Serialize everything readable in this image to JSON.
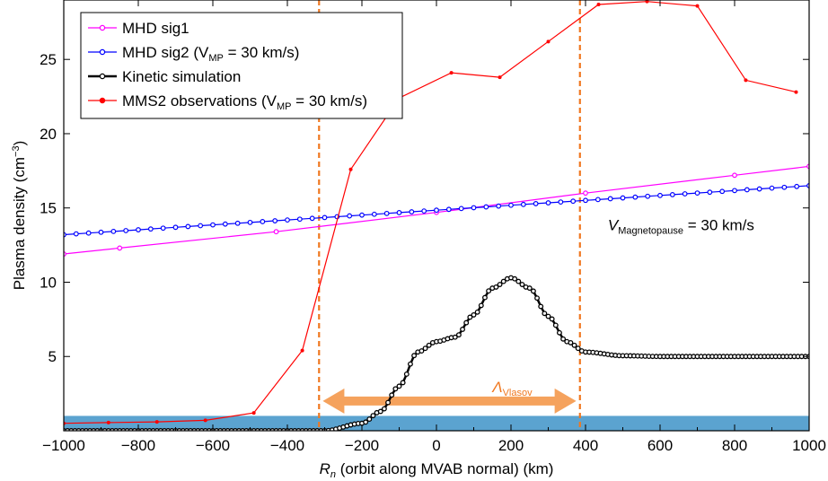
{
  "chart_data": {
    "type": "line",
    "xlabel": {
      "main": "R",
      "sub": "n",
      "rest": " (orbit along MVAB normal) (km)"
    },
    "ylabel": {
      "main": "Plasma density (cm",
      "sup": "−3",
      "end": ")"
    },
    "xlim": [
      -1000,
      1000
    ],
    "ylim": [
      0,
      29
    ],
    "xticks": [
      -1000,
      -800,
      -600,
      -400,
      -200,
      0,
      200,
      400,
      600,
      800,
      1000
    ],
    "xtick_labels": [
      "−1000",
      "−800",
      "−600",
      "−400",
      "−200",
      "0",
      "200",
      "400",
      "600",
      "800",
      "1000"
    ],
    "yticks": [
      5,
      10,
      15,
      20,
      25
    ],
    "ytick_labels": [
      "5",
      "10",
      "15",
      "20",
      "25"
    ],
    "grid": false,
    "legend_position": "top-left",
    "colors": {
      "mhd_sig1": "#ff00ff",
      "mhd_sig2": "#0000ff",
      "kinetic": "#000000",
      "mms2": "#ff0000",
      "vlines": "#f07820",
      "arrow": "#f5a25d",
      "band": "#5ba3d0"
    },
    "series": [
      {
        "key": "mhd_sig1",
        "label": {
          "pre": "MHD sig1",
          "sub": "",
          "post": ""
        },
        "x": [
          -1000,
          -850,
          -430,
          0,
          400,
          800,
          1000
        ],
        "y": [
          11.9,
          12.3,
          13.4,
          14.7,
          16.0,
          17.2,
          17.8
        ],
        "marker_every": 1,
        "line_width": 1.2
      },
      {
        "key": "mhd_sig2",
        "label": {
          "pre": "MHD sig2 (V",
          "sub": "MP",
          "post": " = 30 km/s)"
        },
        "x0": -1000,
        "x1": 1000,
        "n": 61,
        "y0": 13.2,
        "y1": 16.5,
        "marker_every": 1,
        "line_width": 1.2
      },
      {
        "key": "kinetic",
        "label": {
          "pre": "Kinetic simulation",
          "sub": "",
          "post": ""
        },
        "x0": -1000,
        "x1": 1000,
        "n": 201,
        "profile": [
          [
            -1000,
            0
          ],
          [
            -300,
            0
          ],
          [
            -200,
            0.5
          ],
          [
            -150,
            1.3
          ],
          [
            -100,
            3
          ],
          [
            -50,
            5.3
          ],
          [
            0,
            6
          ],
          [
            50,
            6.3
          ],
          [
            100,
            7.8
          ],
          [
            150,
            9.6
          ],
          [
            200,
            10.3
          ],
          [
            250,
            9.6
          ],
          [
            300,
            7.7
          ],
          [
            350,
            6.0
          ],
          [
            400,
            5.3
          ],
          [
            500,
            5.05
          ],
          [
            600,
            5
          ],
          [
            1000,
            5
          ]
        ],
        "marker_every": 1,
        "line_width": 2.5
      },
      {
        "key": "mms2",
        "label": {
          "pre": "MMS2 observations (V",
          "sub": "MP",
          "post": " = 30 km/s)"
        },
        "x": [
          -1000,
          -880,
          -750,
          -620,
          -490,
          -360,
          -230,
          -100,
          40,
          170,
          300,
          435,
          565,
          700,
          830,
          965
        ],
        "y": [
          0.5,
          0.55,
          0.6,
          0.7,
          1.2,
          5.4,
          17.6,
          22.4,
          24.1,
          23.8,
          26.2,
          28.7,
          28.9,
          28.6,
          23.6,
          22.8
        ],
        "marker_every": 1,
        "line_width": 1.2
      }
    ],
    "vlines": [
      -315,
      385
    ],
    "band": {
      "y0": 0,
      "y1": 1
    },
    "vlasov_arrow": {
      "x0": -305,
      "x1": 375,
      "y": 2.0,
      "label_main": "Λ",
      "label_sub": "Vlasov"
    },
    "annotation": {
      "main": "V",
      "sub": "Magnetopause",
      "rest": " = 30 km/s",
      "x": 460,
      "y": 13.5
    }
  }
}
